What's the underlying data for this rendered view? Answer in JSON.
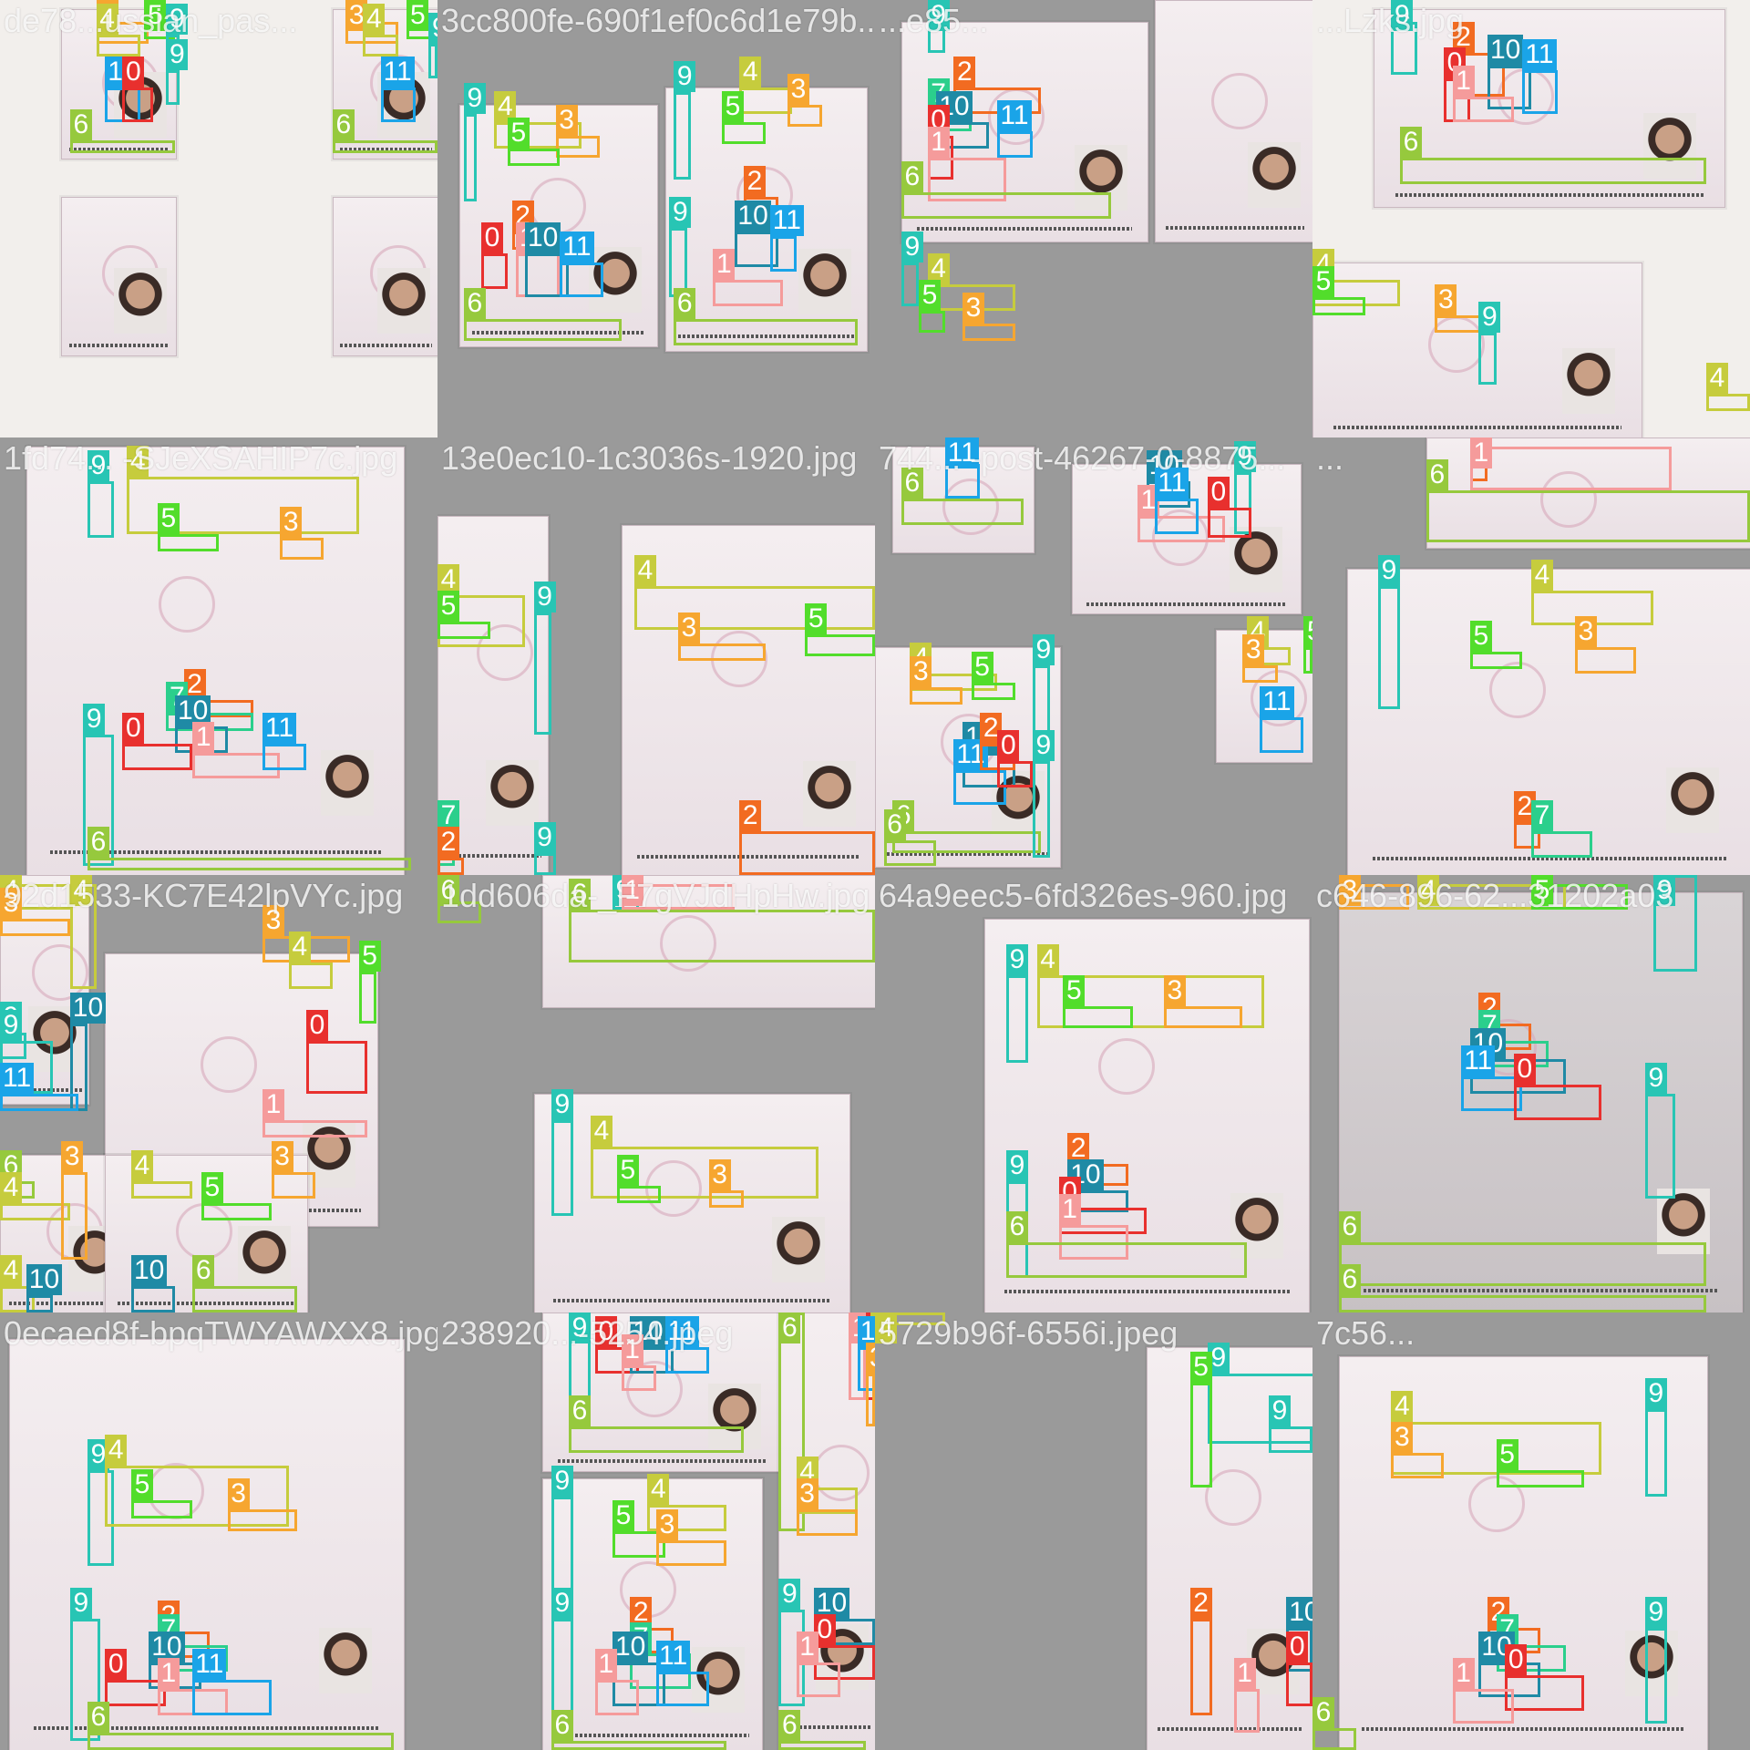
{
  "mosaic": {
    "tiles": [
      {
        "filename": "de78...ussian_pas...",
        "labels": [
          "3",
          "4",
          "5",
          "9",
          "9",
          "11",
          "0",
          "6",
          "3",
          "4",
          "5",
          "9",
          "11",
          "6"
        ]
      },
      {
        "filename": "3cc800fe-690f1ef0c6d1e79b...",
        "labels": [
          "4",
          "3",
          "5",
          "9",
          "2",
          "0",
          "1",
          "10",
          "11",
          "6",
          "9",
          "4",
          "3",
          "5",
          "9",
          "2",
          "10",
          "11",
          "1",
          "6"
        ]
      },
      {
        "filename": "...e85...",
        "labels": [
          "9",
          "2",
          "7",
          "10",
          "0",
          "1",
          "11",
          "6",
          "9",
          "4",
          "5",
          "3"
        ]
      },
      {
        "filename": "...Lzks.jpg",
        "labels": [
          "9",
          "2",
          "0",
          "10",
          "11",
          "1",
          "6",
          "4",
          "5",
          "3",
          "9",
          "4"
        ]
      },
      {
        "filename": "1fd74... -SJeXSAHIP7c.jpg",
        "labels": [
          "4",
          "9",
          "5",
          "3",
          "9",
          "2",
          "7",
          "10",
          "0",
          "1",
          "11",
          "6"
        ]
      },
      {
        "filename": "13e0ec10-1c3036s-1920.jpg",
        "labels": [
          "4",
          "5",
          "9",
          "4",
          "3",
          "5",
          "2",
          "7",
          "9",
          "2"
        ]
      },
      {
        "filename": "744... -post-46267-0-8875...",
        "labels": [
          "11",
          "6",
          "10",
          "9",
          "1",
          "11",
          "0",
          "4",
          "3",
          "5",
          "4",
          "3",
          "5",
          "9",
          "10",
          "11",
          "6",
          "2",
          "11",
          "0",
          "9",
          "6"
        ]
      },
      {
        "filename": "...",
        "labels": [
          "2",
          "1",
          "6",
          "4",
          "9",
          "5",
          "3",
          "2",
          "7"
        ]
      },
      {
        "filename": "92d1533-KC7E42lpVYc.jpg",
        "labels": [
          "4",
          "3",
          "4",
          "3",
          "4",
          "5",
          "9",
          "10",
          "0",
          "9",
          "11",
          "1",
          "6",
          "4",
          "3",
          "4",
          "5",
          "3",
          "4",
          "10",
          "6",
          "10"
        ]
      },
      {
        "filename": "1dd606da-_F7gVJdHpHw.jpg",
        "labels": [
          "9",
          "1",
          "6",
          "6",
          "9",
          "4",
          "5",
          "3"
        ]
      },
      {
        "filename": "64a9eec5-6fd326es-960.jpg",
        "labels": [
          "4",
          "9",
          "5",
          "3",
          "9",
          "2",
          "10",
          "0",
          "1",
          "6"
        ]
      },
      {
        "filename": "c646-896-62...31202a03",
        "labels": [
          "3",
          "4",
          "5",
          "9",
          "2",
          "7",
          "10",
          "11",
          "0",
          "9",
          "6",
          "6"
        ]
      },
      {
        "filename": "0ecaed8f-bpqTWYAWXX8.jpg",
        "labels": [
          "9",
          "4",
          "5",
          "3",
          "9",
          "2",
          "7",
          "10",
          "0",
          "1",
          "11",
          "6"
        ]
      },
      {
        "filename": "238920...-5254.jpeg",
        "labels": [
          "9",
          "0",
          "10",
          "11",
          "1",
          "6",
          "6",
          "1",
          "0",
          "4",
          "11",
          "3",
          "9",
          "4",
          "5",
          "3",
          "9",
          "2",
          "7",
          "10",
          "11",
          "1",
          "6",
          "4",
          "3",
          "9",
          "10",
          "0",
          "1",
          "6"
        ]
      },
      {
        "filename": "5729b96f-6556i.jpeg",
        "labels": [
          "4",
          "9",
          "5",
          "9",
          "2",
          "10",
          "0",
          "1"
        ]
      },
      {
        "filename": "7c56...",
        "labels": [
          "4",
          "3",
          "5",
          "9",
          "2",
          "7",
          "10",
          "0",
          "1",
          "6",
          "9"
        ]
      }
    ]
  },
  "classes": {
    "0": "#e8302e",
    "1": "#f59b9b",
    "2": "#f26b21",
    "3": "#f6a630",
    "4": "#c6cc3d",
    "5": "#52dd2b",
    "6": "#96c93d",
    "7": "#2bcf8c",
    "9": "#28c5b4",
    "10": "#1f8aa5",
    "11": "#1aa4e8"
  }
}
